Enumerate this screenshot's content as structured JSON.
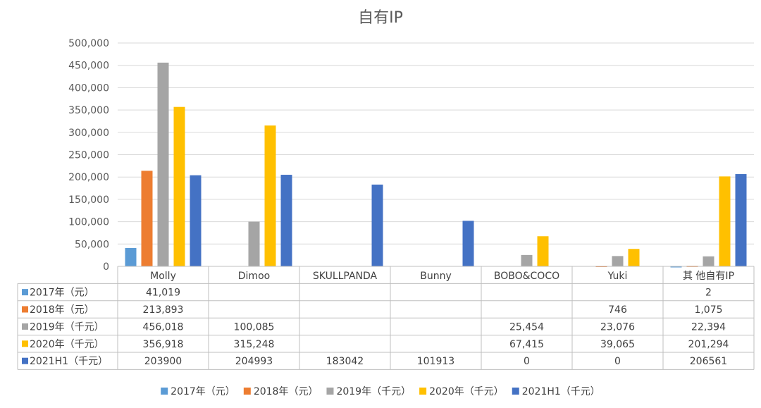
{
  "chart_data": {
    "type": "bar",
    "title": "自有IP",
    "categories": [
      "Molly",
      "Dimoo",
      "SKULLPANDA",
      "Bunny",
      "BOBO&COCO",
      "Yuki",
      "其 他自有IP"
    ],
    "ylim": [
      0,
      500000
    ],
    "yticks": [
      "500,000",
      "450,000",
      "400,000",
      "350,000",
      "300,000",
      "250,000",
      "200,000",
      "150,000",
      "100,000",
      "50,000",
      "0"
    ],
    "grid": true,
    "legend_position": "bottom",
    "series": [
      {
        "name": "2017年（元）",
        "color": "#5b9bd5",
        "values": [
          41019,
          null,
          null,
          null,
          null,
          null,
          2
        ],
        "labels": [
          "41,019",
          "",
          "",
          "",
          "",
          "",
          "2"
        ]
      },
      {
        "name": "2018年（元）",
        "color": "#ed7d31",
        "values": [
          213893,
          null,
          null,
          null,
          null,
          746,
          1075
        ],
        "labels": [
          "213,893",
          "",
          "",
          "",
          "",
          "746",
          "1,075"
        ]
      },
      {
        "name": "2019年（千元）",
        "color": "#a5a5a5",
        "values": [
          456018,
          100085,
          null,
          null,
          25454,
          23076,
          22394
        ],
        "labels": [
          "456,018",
          "100,085",
          "",
          "",
          "25,454",
          "23,076",
          "22,394"
        ]
      },
      {
        "name": "2020年（千元）",
        "color": "#ffc000",
        "values": [
          356918,
          315248,
          null,
          null,
          67415,
          39065,
          201294
        ],
        "labels": [
          "356,918",
          "315,248",
          "",
          "",
          "67,415",
          "39,065",
          "201,294"
        ]
      },
      {
        "name": "2021H1（千元）",
        "color": "#4472c4",
        "values": [
          203900,
          204993,
          183042,
          101913,
          0,
          0,
          206561
        ],
        "labels": [
          "203900",
          "204993",
          "183042",
          "101913",
          "0",
          "0",
          "206561"
        ]
      }
    ]
  }
}
